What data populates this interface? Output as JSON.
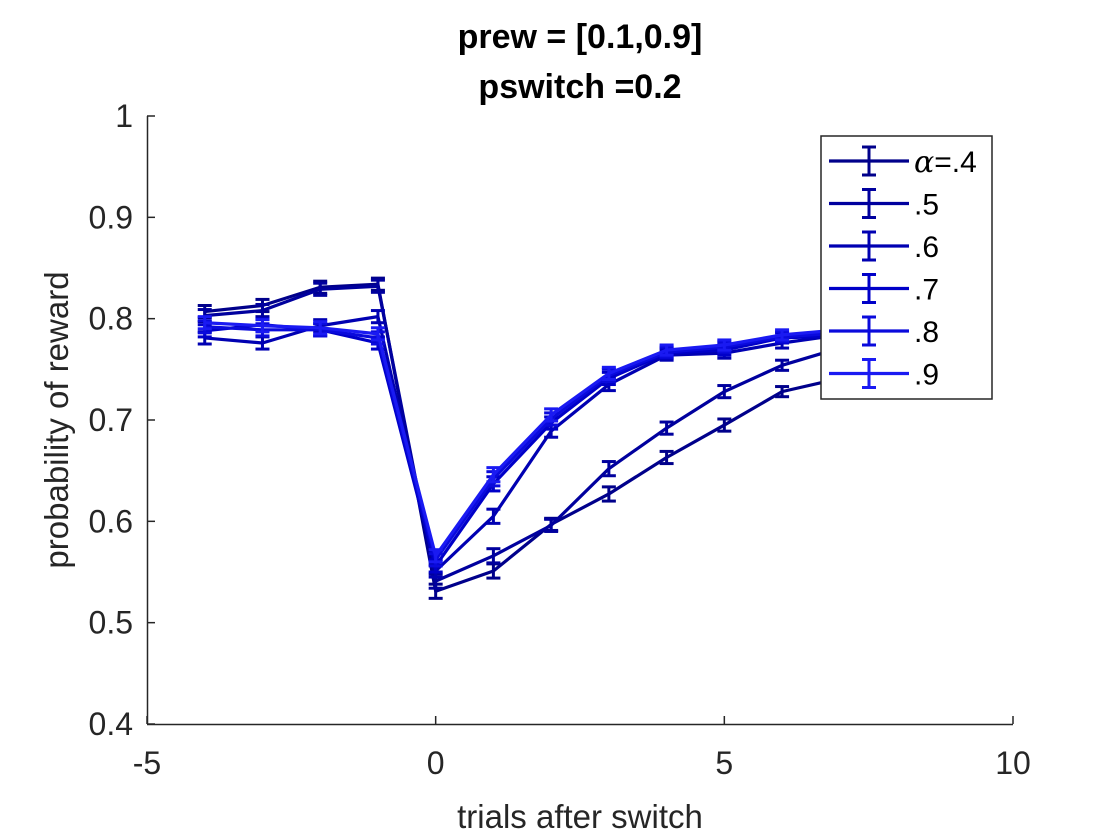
{
  "chart_data": {
    "type": "line",
    "title": [
      "prew = [0.1,0.9]",
      "pswitch =0.2"
    ],
    "xlabel": "trials after switch",
    "ylabel": "probability of reward",
    "xlim": [
      -5,
      10
    ],
    "ylim": [
      0.4,
      1
    ],
    "xticks": [
      "-5",
      "0",
      "5",
      "10"
    ],
    "yticks": [
      "0.4",
      "0.5",
      "0.6",
      "0.7",
      "0.8",
      "0.9",
      "1"
    ],
    "grid": false,
    "error_bars": true,
    "legend_position": "top-right",
    "x": [
      -4,
      -3,
      -2,
      -1,
      0,
      1,
      2,
      3,
      4,
      5,
      6,
      7,
      8
    ],
    "series": [
      {
        "name": "=.4",
        "name_prefix_symbol": "α",
        "color": "#00008b",
        "values": [
          0.807,
          0.813,
          0.831,
          0.834,
          0.531,
          0.551,
          0.597,
          0.627,
          0.663,
          0.695,
          0.728,
          0.741,
          0.755
        ],
        "err": [
          0.006,
          0.006,
          0.006,
          0.006,
          0.007,
          0.007,
          0.006,
          0.007,
          0.006,
          0.006,
          0.005,
          0.005,
          0.005
        ]
      },
      {
        "name": ".5",
        "color": "#00009e",
        "values": [
          0.803,
          0.808,
          0.829,
          0.832,
          0.541,
          0.566,
          0.596,
          0.652,
          0.692,
          0.728,
          0.754,
          0.771,
          0.778
        ],
        "err": [
          0.006,
          0.006,
          0.006,
          0.006,
          0.007,
          0.007,
          0.006,
          0.007,
          0.006,
          0.006,
          0.005,
          0.005,
          0.005
        ]
      },
      {
        "name": ".6",
        "color": "#0000b2",
        "values": [
          0.781,
          0.776,
          0.793,
          0.802,
          0.551,
          0.605,
          0.689,
          0.735,
          0.764,
          0.766,
          0.776,
          0.784,
          0.787
        ],
        "err": [
          0.006,
          0.006,
          0.006,
          0.006,
          0.006,
          0.007,
          0.006,
          0.006,
          0.005,
          0.005,
          0.005,
          0.004,
          0.004
        ]
      },
      {
        "name": ".7",
        "color": "#0000c8",
        "values": [
          0.788,
          0.794,
          0.789,
          0.776,
          0.556,
          0.637,
          0.697,
          0.741,
          0.766,
          0.769,
          0.781,
          0.783,
          0.788
        ],
        "err": [
          0.006,
          0.006,
          0.006,
          0.006,
          0.006,
          0.007,
          0.006,
          0.006,
          0.005,
          0.005,
          0.005,
          0.004,
          0.004
        ]
      },
      {
        "name": ".8",
        "color": "#0a0adc",
        "values": [
          0.792,
          0.789,
          0.789,
          0.781,
          0.562,
          0.642,
          0.701,
          0.744,
          0.767,
          0.772,
          0.782,
          0.786,
          0.791
        ],
        "err": [
          0.006,
          0.006,
          0.006,
          0.006,
          0.006,
          0.007,
          0.006,
          0.006,
          0.005,
          0.005,
          0.005,
          0.004,
          0.004
        ]
      },
      {
        "name": ".9",
        "color": "#1a1af2",
        "values": [
          0.796,
          0.793,
          0.791,
          0.785,
          0.566,
          0.646,
          0.705,
          0.746,
          0.769,
          0.774,
          0.784,
          0.789,
          0.793
        ],
        "err": [
          0.006,
          0.006,
          0.006,
          0.006,
          0.006,
          0.007,
          0.006,
          0.006,
          0.005,
          0.005,
          0.005,
          0.004,
          0.004
        ]
      }
    ]
  }
}
